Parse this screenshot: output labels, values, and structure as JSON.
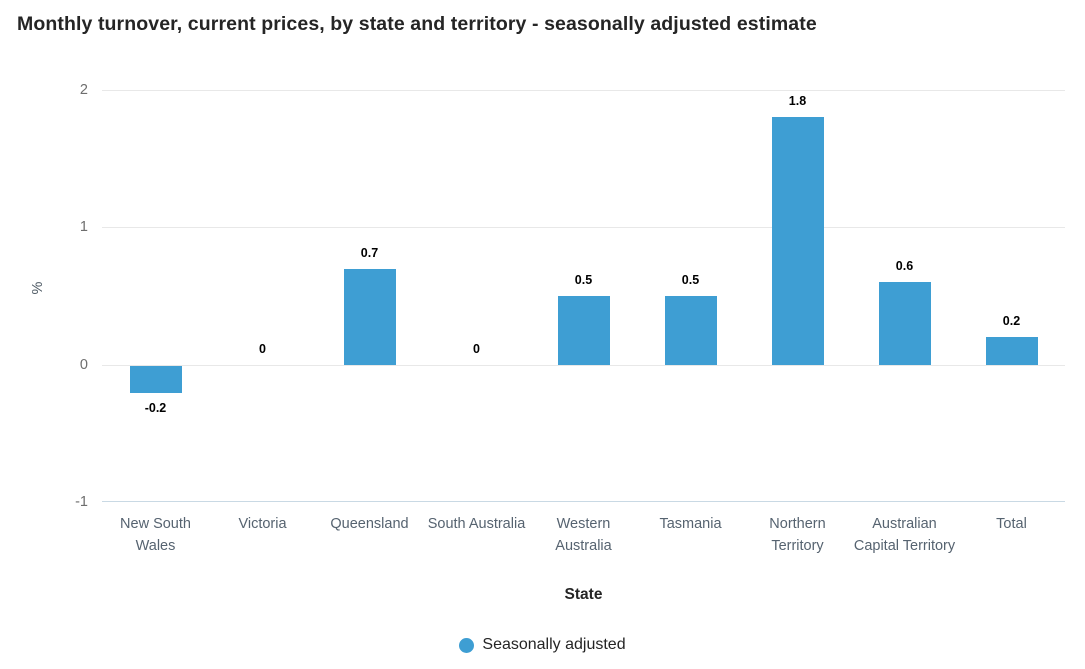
{
  "chart_data": {
    "type": "bar",
    "title": "Monthly turnover, current prices, by state and territory - seasonally adjusted estimate",
    "categories": [
      "New South Wales",
      "Victoria",
      "Queensland",
      "South Australia",
      "Western Australia",
      "Tasmania",
      "Northern Territory",
      "Australian Capital Territory",
      "Total"
    ],
    "series": [
      {
        "name": "Seasonally adjusted",
        "values": [
          -0.2,
          0,
          0.7,
          0,
          0.5,
          0.5,
          1.8,
          0.6,
          0.2
        ]
      }
    ],
    "data_labels": [
      "-0.2",
      "0",
      "0.7",
      "0",
      "0.5",
      "0.5",
      "1.8",
      "0.6",
      "0.2"
    ],
    "xlabel": "State",
    "ylabel": "%",
    "ylim": [
      -1,
      2
    ],
    "yticks": [
      2,
      1,
      0,
      -1
    ],
    "grid": "horizontal",
    "legend": {
      "position": "bottom",
      "entries": [
        "Seasonally adjusted"
      ]
    },
    "colors": {
      "bar": "#3E9ED3",
      "gridline": "#e8e8e8",
      "axis_line": "#c9d9e4",
      "title_text": "#252525",
      "category_label": "#566370",
      "y_tick_label": "#6e6e6e",
      "value_label": "#000000"
    }
  }
}
